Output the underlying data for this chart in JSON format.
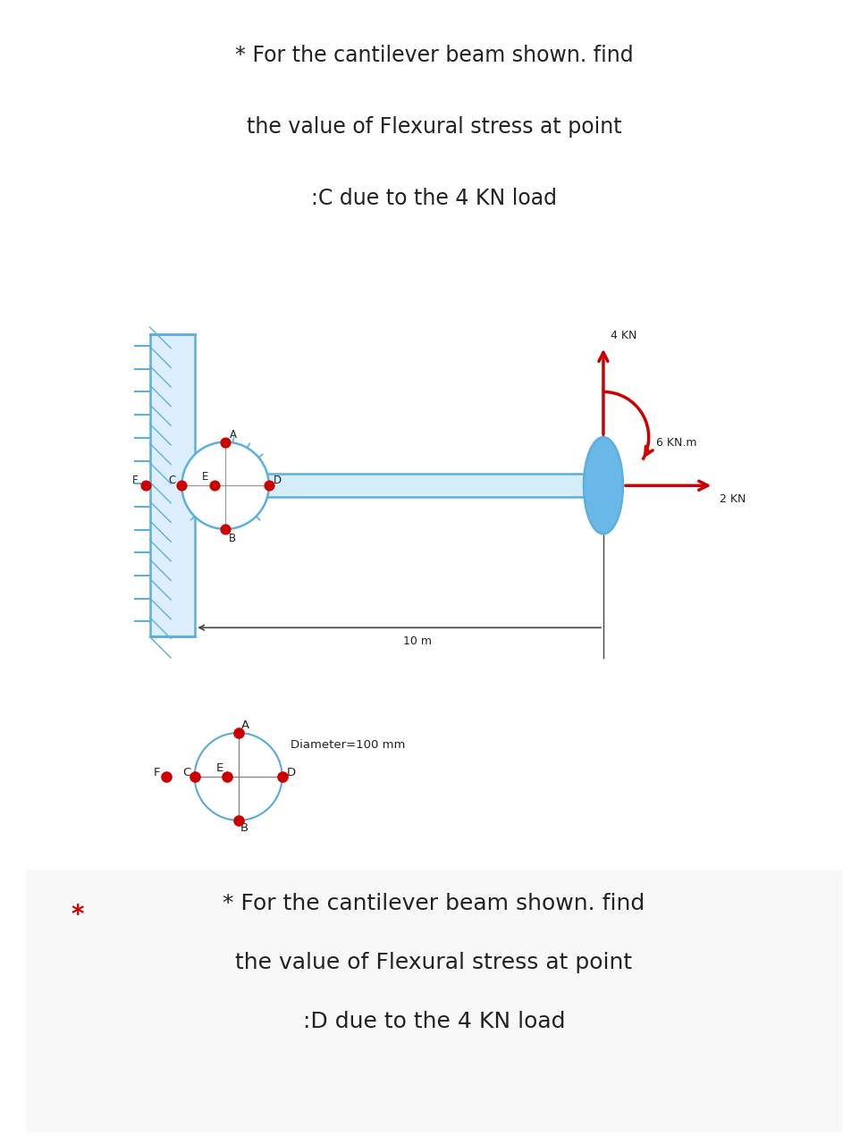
{
  "bg_color": "#ffffff",
  "section1_bg": "#ffffff",
  "section2_bg": "#ffffff",
  "title1_line1": "* For the cantilever beam shown. find",
  "title1_line2": "the value of Flexural stress at point",
  "title1_line3": ":C due to the 4 KN load",
  "title2_line1": "* For the cantilever beam shown. find",
  "title2_line2": "the value of Flexural stress at point",
  "title2_line3": ":D due to the 4 KN load",
  "beam_color": "#5bb0e0",
  "wall_color": "#5bb0e0",
  "ellipse_color": "#6ab8e8",
  "arrow_color": "#cc0000",
  "point_color": "#cc0000",
  "text_color": "#222222",
  "dim_line_color": "#444444",
  "diameter_label": "Diameter=100 mm",
  "load_4kn": "4 KN",
  "load_6knm": "6 KN.m",
  "load_2kn": "2 KN",
  "dist_label": "10 m",
  "star_color": "#cc0000"
}
